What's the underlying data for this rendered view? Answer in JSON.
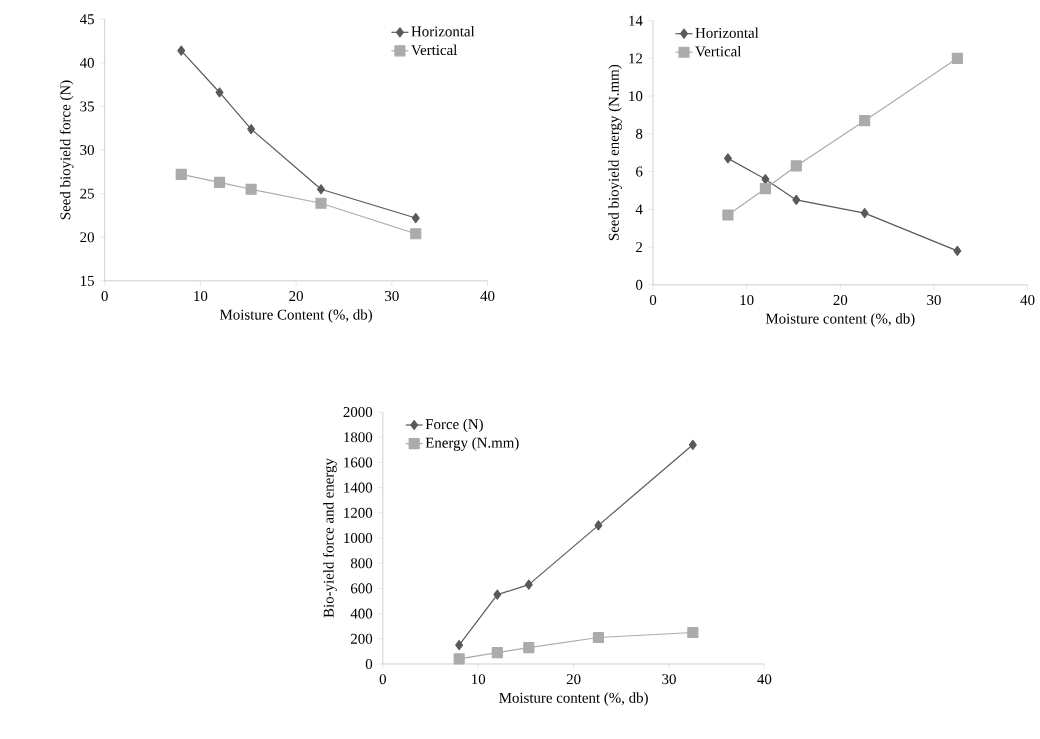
{
  "chart_data": [
    {
      "type": "line",
      "xlabel": "Moisture Content (%, db)",
      "ylabel": "Seed bioyield force (N)",
      "x": [
        8.0,
        12.0,
        15.3,
        22.6,
        32.5
      ],
      "xlim": [
        0,
        40
      ],
      "xticks": [
        0,
        10,
        20,
        30,
        40
      ],
      "ylim": [
        15,
        45
      ],
      "yticks": [
        15,
        20,
        25,
        30,
        35,
        40,
        45
      ],
      "grid": false,
      "legend": "top right",
      "series": [
        {
          "name": "Horizontal",
          "color": "#595959",
          "marker": "diamond",
          "values": [
            41.4,
            36.6,
            32.4,
            25.5,
            22.2
          ]
        },
        {
          "name": "Vertical",
          "color": "#ababab",
          "marker": "square",
          "values": [
            27.2,
            26.3,
            25.5,
            23.9,
            20.4
          ]
        }
      ]
    },
    {
      "type": "line",
      "xlabel": "Moisture content (%, db)",
      "ylabel": "Seed bioyield energy (N.mm)",
      "x": [
        8.0,
        12.0,
        15.3,
        22.6,
        32.5
      ],
      "xlim": [
        0,
        40
      ],
      "xticks": [
        0,
        10,
        20,
        30,
        40
      ],
      "ylim": [
        0,
        14
      ],
      "yticks": [
        0,
        2,
        4,
        6,
        8,
        10,
        12,
        14
      ],
      "grid": false,
      "legend": "top left",
      "series": [
        {
          "name": "Horizontal",
          "color": "#595959",
          "marker": "diamond",
          "values": [
            6.7,
            5.6,
            4.5,
            3.8,
            1.8
          ]
        },
        {
          "name": "Vertical",
          "color": "#ababab",
          "marker": "square",
          "values": [
            3.7,
            5.1,
            6.3,
            8.7,
            12.0
          ]
        }
      ]
    },
    {
      "type": "line",
      "xlabel": "Moisture content (%, db)",
      "ylabel": "Bio-yield force and energy",
      "x": [
        8.0,
        12.0,
        15.3,
        22.6,
        32.5
      ],
      "xlim": [
        0,
        40
      ],
      "xticks": [
        0,
        10,
        20,
        30,
        40
      ],
      "ylim": [
        0,
        2000
      ],
      "yticks": [
        0,
        200,
        400,
        600,
        800,
        1000,
        1200,
        1400,
        1600,
        1800,
        2000
      ],
      "grid": false,
      "legend": "top left",
      "series": [
        {
          "name": "Force (N)",
          "color": "#595959",
          "marker": "diamond",
          "values": [
            150,
            550,
            630,
            1100,
            1740
          ]
        },
        {
          "name": "Energy (N.mm)",
          "color": "#ababab",
          "marker": "square",
          "values": [
            40,
            90,
            130,
            210,
            250
          ]
        }
      ]
    }
  ]
}
